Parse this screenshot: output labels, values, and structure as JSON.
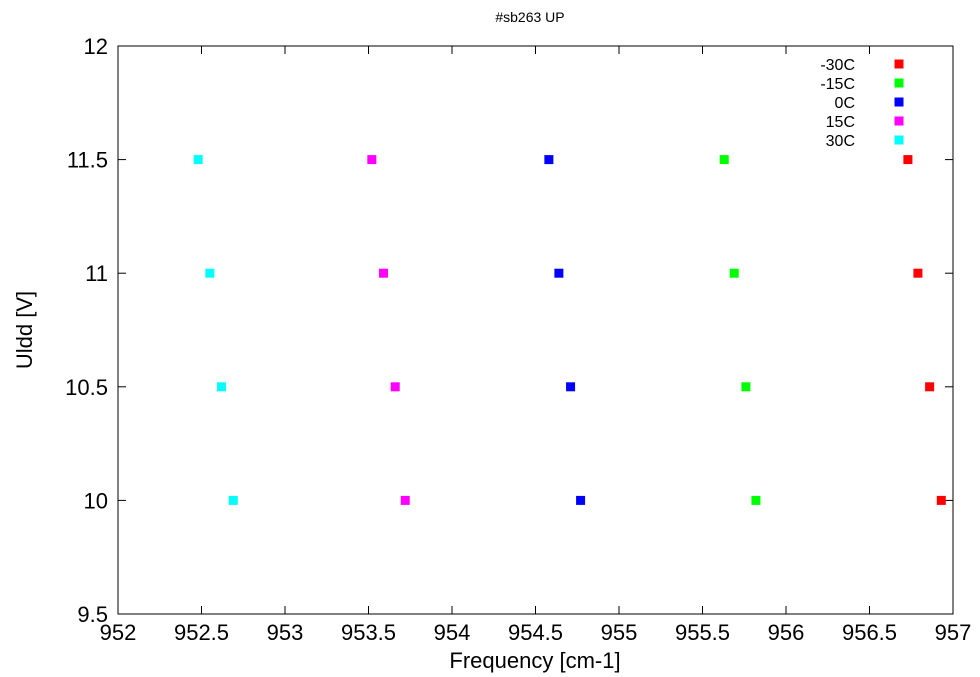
{
  "chart_data": {
    "type": "scatter",
    "title": "#sb263 UP",
    "xlabel": "Frequency [cm-1]",
    "ylabel": "Uldd [V]",
    "xlim": [
      952,
      957
    ],
    "ylim": [
      9.5,
      12
    ],
    "xticks": [
      "952",
      "952.5",
      "953",
      "953.5",
      "954",
      "954.5",
      "955",
      "955.5",
      "956",
      "956.5",
      "957"
    ],
    "yticks": [
      "9.5",
      "10",
      "10.5",
      "11",
      "11.5",
      "12"
    ],
    "grid": false,
    "legend_position": "top-right",
    "series": [
      {
        "name": "-30C",
        "color": "#ff0000",
        "x": [
          956.93,
          956.86,
          956.79,
          956.73
        ],
        "y": [
          10,
          10.5,
          11,
          11.5
        ]
      },
      {
        "name": "-15C",
        "color": "#00ff00",
        "x": [
          955.82,
          955.76,
          955.69,
          955.63
        ],
        "y": [
          10,
          10.5,
          11,
          11.5
        ]
      },
      {
        "name": "0C",
        "color": "#0000ff",
        "x": [
          954.77,
          954.71,
          954.64,
          954.58
        ],
        "y": [
          10,
          10.5,
          11,
          11.5
        ]
      },
      {
        "name": "15C",
        "color": "#ff00ff",
        "x": [
          953.72,
          953.66,
          953.59,
          953.52
        ],
        "y": [
          10,
          10.5,
          11,
          11.5
        ]
      },
      {
        "name": "30C",
        "color": "#00ffff",
        "x": [
          952.69,
          952.62,
          952.55,
          952.48
        ],
        "y": [
          10,
          10.5,
          11,
          11.5
        ]
      }
    ]
  }
}
